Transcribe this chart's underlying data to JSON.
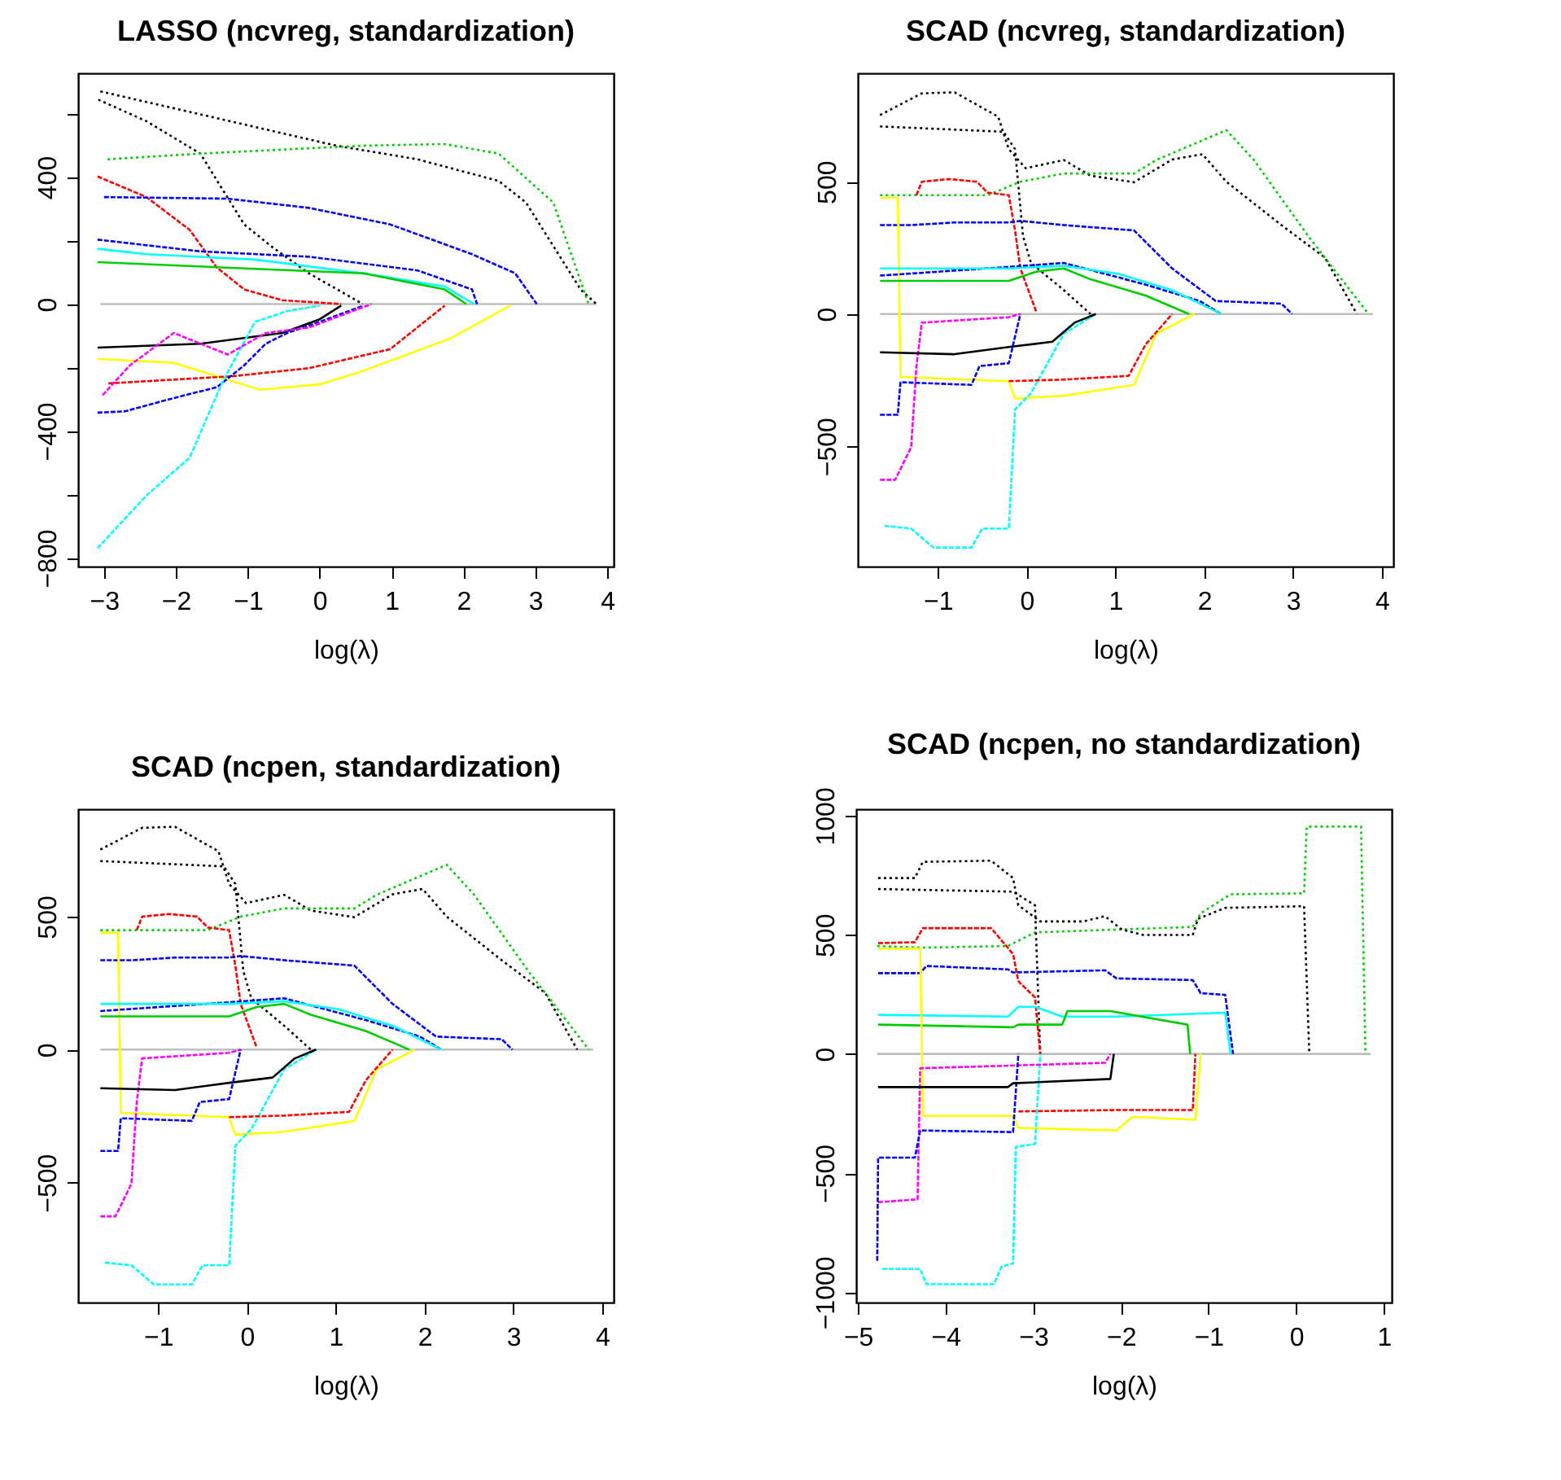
{
  "chart_data": [
    {
      "type": "line",
      "title": "LASSO (ncvreg, standardization)",
      "xlabel": "log(λ)",
      "xlim": [
        -3.36,
        4.09
      ],
      "ylim": [
        -827,
        727
      ],
      "xticks": [
        -3,
        -2,
        -1,
        0,
        1,
        2,
        3,
        4
      ],
      "yticks": [
        {
          "value": -800,
          "label": "−800"
        },
        {
          "value": -600,
          "label": null
        },
        {
          "value": -400,
          "label": "−400"
        },
        {
          "value": -200,
          "label": null
        },
        0,
        {
          "value": 200,
          "label": null
        },
        400,
        {
          "value": 600,
          "label": null
        }
      ],
      "series": [
        {
          "color": "#bebebe",
          "line_style": "solid",
          "x": [
            -3.05,
            3.85
          ],
          "values": [
            0,
            0
          ]
        },
        {
          "color": "#000000",
          "line_style": "dotted",
          "x": [
            -3.05,
            0.23,
            1.36,
            2.49,
            2.87,
            3.63,
            3.85
          ],
          "values": [
            670,
            499,
            456,
            388,
            320,
            46,
            0
          ]
        },
        {
          "color": "#000000",
          "line_style": "dotted",
          "x": [
            -3.08,
            -2.41,
            -1.66,
            -1.05,
            -0.68,
            -0.15,
            0.6
          ],
          "values": [
            644,
            576,
            474,
            251,
            183,
            97,
            0
          ]
        },
        {
          "color": "#00cd00",
          "line_style": "dotted",
          "x": [
            -2.95,
            -1.66,
            0.61,
            1.74,
            2.49,
            3.25,
            3.74
          ],
          "values": [
            456,
            474,
            499,
            504,
            474,
            320,
            0
          ]
        },
        {
          "color": "#ff0000",
          "line_style": "dashed",
          "x": [
            -3.09,
            -2.41,
            -1.81,
            -1.43,
            -1.05,
            -0.52,
            0.3
          ],
          "values": [
            402,
            337,
            234,
            115,
            46,
            12,
            0
          ]
        },
        {
          "color": "#0000ff",
          "line_style": "dashed",
          "x": [
            -3,
            -1.28,
            -0.15,
            0.98,
            2.12,
            2.72,
            3.02
          ],
          "values": [
            337,
            332,
            303,
            251,
            157,
            97,
            0
          ]
        },
        {
          "color": "#00ffff",
          "line_style": "solid",
          "x": [
            -3.09,
            -2.41,
            -0.9,
            0.61,
            1.74,
            2.15
          ],
          "values": [
            174,
            157,
            140,
            97,
            55,
            0
          ]
        },
        {
          "color": "#0000ff",
          "line_style": "dashed",
          "x": [
            -3.09,
            -1.66,
            -0.15,
            1.36,
            2.12,
            2.19
          ],
          "values": [
            203,
            166,
            149,
            106,
            46,
            0
          ]
        },
        {
          "color": "#00cd00",
          "line_style": "solid",
          "x": [
            -3.09,
            -0.9,
            0.61,
            1.74,
            2.04
          ],
          "values": [
            132,
            111,
            97,
            46,
            0
          ]
        },
        {
          "color": "#000000",
          "line_style": "solid",
          "x": [
            -3.09,
            -1.66,
            -0.52,
            0,
            0.3
          ],
          "values": [
            -137,
            -125,
            -91,
            -48,
            -5
          ]
        },
        {
          "color": "#ffff00",
          "line_style": "solid",
          "x": [
            -3.09,
            -2.03,
            -0.83,
            0,
            0.61,
            1.82,
            2.65
          ],
          "values": [
            -173,
            -185,
            -270,
            -253,
            -210,
            -108,
            -5
          ]
        },
        {
          "color": "#ff0000",
          "line_style": "dashed",
          "x": [
            -2.94,
            -1.2,
            -0.15,
            0.98,
            1.74
          ],
          "values": [
            -250,
            -227,
            -202,
            -142,
            -5
          ]
        },
        {
          "color": "#0000ff",
          "line_style": "dashed",
          "x": [
            -3.09,
            -2.71,
            -2.03,
            -1.43,
            -1.05,
            -0.75,
            -0.45,
            0,
            0.61
          ],
          "values": [
            -342,
            -338,
            -296,
            -262,
            -193,
            -125,
            -91,
            -56,
            -5
          ]
        },
        {
          "color": "#00ffff",
          "line_style": "dashed",
          "x": [
            -3.09,
            -2.41,
            -1.81,
            -1.35,
            -0.9,
            -0.45,
            0
          ],
          "values": [
            -769,
            -603,
            -484,
            -244,
            -56,
            -22,
            -5
          ]
        },
        {
          "color": "#ff00ff",
          "line_style": "dashed",
          "x": [
            -3.02,
            -2.64,
            -2.03,
            -1.28,
            -0.75,
            -0.15,
            0.72
          ],
          "values": [
            -287,
            -193,
            -91,
            -159,
            -91,
            -74,
            0
          ]
        }
      ]
    },
    {
      "type": "line",
      "title": "SCAD (ncvreg, standardization)",
      "xlabel": "log(λ)",
      "xlim": [
        -1.9,
        4.13
      ],
      "ylim": [
        -955,
        910
      ],
      "xticks": [
        -1,
        0,
        1,
        2,
        3,
        4
      ],
      "yticks": [
        -500,
        0,
        500
      ],
      "series": [
        {
          "color": "#bebebe",
          "line_style": "solid",
          "x": [
            -1.65,
            3.9
          ],
          "values": [
            0,
            0
          ]
        },
        {
          "color": "#000000",
          "line_style": "dotted",
          "x": [
            -1.65,
            -1.18,
            -0.81,
            -0.32,
            -0.2,
            -0.01,
            0.42,
            0.72,
            1.21,
            1.64,
            1.98,
            2.25,
            2.87,
            3.36,
            3.72
          ],
          "values": [
            752,
            834,
            838,
            746,
            623,
            551,
            582,
            523,
            498,
            584,
            604,
            500,
            336,
            213,
            0
          ]
        },
        {
          "color": "#000000",
          "line_style": "dotted",
          "x": [
            -1.65,
            -0.26,
            -0.13,
            -0.04,
            0.05,
            0.42,
            0.72
          ],
          "values": [
            709,
            689,
            623,
            295,
            193,
            90,
            0
          ]
        },
        {
          "color": "#00cd00",
          "line_style": "dotted",
          "x": [
            -1.65,
            -0.44,
            -0.07,
            0.42,
            1.21,
            1.46,
            2.25,
            2.56,
            3.17,
            3.85
          ],
          "values": [
            449,
            449,
            500,
            531,
            531,
            582,
            695,
            582,
            295,
            0
          ]
        },
        {
          "color": "#ff0000",
          "line_style": "dashed",
          "x": [
            -1.24,
            -1.18,
            -0.87,
            -0.56,
            -0.44,
            -0.2,
            -0.13,
            -0.07,
            0.11
          ],
          "values": [
            449,
            500,
            510,
            500,
            459,
            449,
            316,
            172,
            8
          ]
        },
        {
          "color": "#0000ff",
          "line_style": "dashed",
          "x": [
            -1.65,
            -1.3,
            -0.81,
            -0.2,
            -0.07,
            0.42,
            1.21,
            1.64,
            2.13,
            2.87,
            2.99
          ],
          "values": [
            336,
            336,
            346,
            346,
            352,
            336,
            316,
            172,
            49,
            39,
            0
          ]
        },
        {
          "color": "#ffff00",
          "line_style": "solid",
          "x": [
            -1.65,
            -1.45,
            -1.42,
            -0.2,
            -0.13,
            0.42,
            1.21,
            1.46,
            1.89
          ],
          "values": [
            439,
            439,
            -238,
            -254,
            -320,
            -309,
            -268,
            -74,
            0
          ]
        },
        {
          "color": "#00ffff",
          "line_style": "dashed",
          "x": [
            -1.6,
            -1.3,
            -1.05,
            -0.62,
            -0.5,
            -0.2,
            -0.13,
            0.05,
            0.42,
            0.78
          ],
          "values": [
            -801,
            -811,
            -883,
            -883,
            -811,
            -811,
            -361,
            -299,
            -74,
            0
          ]
        },
        {
          "color": "#ff00ff",
          "line_style": "dashed",
          "x": [
            -1.65,
            -1.48,
            -1.3,
            -1.24,
            -1.18,
            -0.2,
            -0.07
          ],
          "values": [
            -627,
            -627,
            -504,
            -197,
            -33,
            -12,
            0
          ]
        },
        {
          "color": "#ff0000",
          "line_style": "dashed",
          "x": [
            -0.2,
            0.42,
            1.15,
            1.34,
            1.64
          ],
          "values": [
            -254,
            -248,
            -234,
            -115,
            0
          ]
        },
        {
          "color": "#0000ff",
          "line_style": "dashed",
          "x": [
            -1.65,
            -0.2,
            0.42,
            1.34,
            1.95,
            2.19
          ],
          "values": [
            145,
            178,
            193,
            111,
            49,
            0
          ]
        },
        {
          "color": "#00ffff",
          "line_style": "solid",
          "x": [
            -1.65,
            -0.2,
            0.42,
            1.03,
            1.64,
            2.19
          ],
          "values": [
            172,
            172,
            182,
            152,
            90,
            0
          ]
        },
        {
          "color": "#00cd00",
          "line_style": "solid",
          "x": [
            -1.65,
            -0.2,
            0.11,
            0.42,
            0.72,
            1.34,
            1.83
          ],
          "values": [
            125,
            125,
            160,
            172,
            131,
            70,
            0
          ]
        },
        {
          "color": "#000000",
          "line_style": "solid",
          "x": [
            -1.65,
            -0.81,
            -0.2,
            0.29,
            0.54,
            0.78
          ],
          "values": [
            -145,
            -152,
            -125,
            -105,
            -33,
            0
          ]
        },
        {
          "color": "#0000ff",
          "line_style": "dashed",
          "x": [
            -1.65,
            -1.45,
            -1.42,
            -0.62,
            -0.53,
            -0.2,
            -0.07
          ],
          "values": [
            -381,
            -381,
            -258,
            -268,
            -197,
            -186,
            0
          ]
        }
      ]
    },
    {
      "type": "line",
      "title": "SCAD (ncpen, standardization)",
      "xlabel": "log(λ)",
      "xlim": [
        -1.9,
        4.13
      ],
      "ylim": [
        -951,
        904
      ],
      "xticks": [
        -1,
        0,
        1,
        2,
        3,
        4
      ],
      "yticks": [
        -500,
        0,
        500
      ],
      "series": [
        {
          "color": "#bebebe",
          "line_style": "solid",
          "x": [
            -1.65,
            3.9
          ],
          "values": [
            0,
            0
          ]
        },
        {
          "color": "#000000",
          "line_style": "dotted",
          "x": [
            -1.65,
            -1.18,
            -0.81,
            -0.32,
            -0.2,
            -0.01,
            0.42,
            0.72,
            1.21,
            1.64,
            1.98,
            2.25,
            2.87,
            3.36,
            3.72
          ],
          "values": [
            752,
            834,
            838,
            746,
            623,
            551,
            582,
            523,
            498,
            584,
            604,
            500,
            336,
            213,
            0
          ]
        },
        {
          "color": "#000000",
          "line_style": "dotted",
          "x": [
            -1.65,
            -0.26,
            -0.13,
            -0.04,
            0.05,
            0.42,
            0.72
          ],
          "values": [
            709,
            689,
            623,
            295,
            193,
            90,
            0
          ]
        },
        {
          "color": "#00cd00",
          "line_style": "dotted",
          "x": [
            -1.65,
            -0.44,
            -0.07,
            0.42,
            1.21,
            1.46,
            2.25,
            2.56,
            3.17,
            3.85
          ],
          "values": [
            449,
            449,
            500,
            531,
            531,
            582,
            695,
            582,
            295,
            0
          ]
        },
        {
          "color": "#ff0000",
          "line_style": "dashed",
          "x": [
            -1.24,
            -1.18,
            -0.87,
            -0.56,
            -0.44,
            -0.2,
            -0.13,
            -0.07,
            0.11
          ],
          "values": [
            449,
            500,
            510,
            500,
            459,
            449,
            316,
            172,
            8
          ]
        },
        {
          "color": "#0000ff",
          "line_style": "dashed",
          "x": [
            -1.65,
            -1.3,
            -0.81,
            -0.2,
            -0.07,
            0.42,
            1.21,
            1.64,
            2.13,
            2.87,
            2.99
          ],
          "values": [
            336,
            336,
            346,
            346,
            352,
            336,
            316,
            172,
            49,
            39,
            0
          ]
        },
        {
          "color": "#ffff00",
          "line_style": "solid",
          "x": [
            -1.65,
            -1.45,
            -1.42,
            -0.2,
            -0.13,
            0.42,
            1.21,
            1.46,
            1.89
          ],
          "values": [
            439,
            439,
            -238,
            -254,
            -320,
            -309,
            -268,
            -74,
            0
          ]
        },
        {
          "color": "#00ffff",
          "line_style": "dashed",
          "x": [
            -1.6,
            -1.3,
            -1.05,
            -0.62,
            -0.5,
            -0.2,
            -0.13,
            0.05,
            0.42,
            0.78
          ],
          "values": [
            -801,
            -811,
            -883,
            -883,
            -811,
            -811,
            -361,
            -299,
            -74,
            0
          ]
        },
        {
          "color": "#ff00ff",
          "line_style": "dashed",
          "x": [
            -1.65,
            -1.48,
            -1.3,
            -1.24,
            -1.18,
            -0.2,
            -0.07
          ],
          "values": [
            -627,
            -627,
            -504,
            -197,
            -33,
            -12,
            0
          ]
        },
        {
          "color": "#ff0000",
          "line_style": "dashed",
          "x": [
            -0.2,
            0.42,
            1.15,
            1.34,
            1.64
          ],
          "values": [
            -254,
            -248,
            -234,
            -115,
            0
          ]
        },
        {
          "color": "#0000ff",
          "line_style": "dashed",
          "x": [
            -1.65,
            -0.2,
            0.42,
            1.34,
            1.95,
            2.19
          ],
          "values": [
            145,
            178,
            193,
            111,
            49,
            0
          ]
        },
        {
          "color": "#00ffff",
          "line_style": "solid",
          "x": [
            -1.65,
            -0.2,
            0.42,
            1.03,
            1.64,
            2.19
          ],
          "values": [
            172,
            172,
            182,
            152,
            90,
            0
          ]
        },
        {
          "color": "#00cd00",
          "line_style": "solid",
          "x": [
            -1.65,
            -0.2,
            0.11,
            0.42,
            0.72,
            1.34,
            1.83
          ],
          "values": [
            125,
            125,
            160,
            172,
            131,
            70,
            0
          ]
        },
        {
          "color": "#000000",
          "line_style": "solid",
          "x": [
            -1.65,
            -0.81,
            -0.2,
            0.29,
            0.54,
            0.78
          ],
          "values": [
            -145,
            -152,
            -125,
            -105,
            -33,
            0
          ]
        },
        {
          "color": "#0000ff",
          "line_style": "dashed",
          "x": [
            -1.65,
            -1.45,
            -1.42,
            -0.62,
            -0.53,
            -0.2,
            -0.07
          ],
          "values": [
            -381,
            -381,
            -258,
            -268,
            -197,
            -186,
            0
          ]
        }
      ]
    },
    {
      "type": "line",
      "title": "SCAD (ncpen, no standardization)",
      "xlabel": "log(λ)",
      "xlim": [
        -5.02,
        1.09
      ],
      "ylim": [
        -1043,
        1027
      ],
      "xticks": [
        -5,
        -4,
        -3,
        -2,
        -1,
        0,
        1
      ],
      "yticks": [
        -1000,
        -500,
        0,
        500,
        1000
      ],
      "series": [
        {
          "color": "#bebebe",
          "line_style": "solid",
          "x": [
            -4.78,
            0.85
          ],
          "values": [
            0,
            0
          ]
        },
        {
          "color": "#00cd00",
          "line_style": "dotted",
          "x": [
            -4.78,
            -4.29,
            -3.29,
            -2.98,
            -2.05,
            -1.18,
            -1.09,
            -0.75,
            0.09,
            0.12,
            0.74,
            0.79
          ],
          "values": [
            453,
            446,
            453,
            510,
            522,
            533,
            590,
            670,
            674,
            954,
            954,
            0
          ]
        },
        {
          "color": "#000000",
          "line_style": "dotted",
          "x": [
            -4.77,
            -4.35,
            -4.26,
            -3.48,
            -3.23,
            -3.17,
            -2.92,
            -2.43,
            -2.18,
            -1.99,
            -1.74,
            -1.18,
            -1.12,
            -0.81,
            0.09,
            0.15
          ],
          "values": [
            738,
            738,
            806,
            811,
            738,
            624,
            556,
            556,
            578,
            522,
            499,
            499,
            567,
            613,
            620,
            0
          ]
        },
        {
          "color": "#000000",
          "line_style": "dotted",
          "x": [
            -4.77,
            -3.23,
            -2.98,
            -2.92
          ],
          "values": [
            692,
            681,
            624,
            0
          ]
        },
        {
          "color": "#ff0000",
          "line_style": "dashed",
          "x": [
            -4.77,
            -4.35,
            -4.26,
            -3.48,
            -3.23,
            -3.17,
            -2.98,
            -2.92
          ],
          "values": [
            465,
            469,
            528,
            528,
            419,
            305,
            237,
            0
          ]
        },
        {
          "color": "#0000ff",
          "line_style": "dashed",
          "x": [
            -4.77,
            -4.29,
            -4.22,
            -3.29,
            -3.23,
            -2.18,
            -2.05,
            -1.18,
            -1.09,
            -0.81,
            -0.72
          ],
          "values": [
            339,
            339,
            369,
            355,
            342,
            351,
            317,
            310,
            255,
            248,
            0
          ]
        },
        {
          "color": "#00ffff",
          "line_style": "solid",
          "x": [
            -4.77,
            -3.29,
            -3.17,
            -2.98,
            -2.67,
            -2.05,
            -0.81,
            -0.75
          ],
          "values": [
            164,
            157,
            198,
            198,
            157,
            157,
            173,
            0
          ]
        },
        {
          "color": "#00cd00",
          "line_style": "solid",
          "x": [
            -4.77,
            -3.23,
            -3.17,
            -2.67,
            -2.61,
            -2.12,
            -1.24,
            -1.21
          ],
          "values": [
            123,
            112,
            123,
            123,
            180,
            180,
            123,
            0
          ]
        },
        {
          "color": "#ffff00",
          "line_style": "solid",
          "x": [
            -4.77,
            -4.29,
            -4.26,
            -3.23,
            -3.17,
            -2.05,
            -1.87,
            -1.15,
            -1.09
          ],
          "values": [
            442,
            442,
            -260,
            -260,
            -310,
            -321,
            -264,
            -276,
            0
          ]
        },
        {
          "color": "#ff0000",
          "line_style": "dashed",
          "x": [
            -3.17,
            -1.99,
            -1.18,
            -1.15
          ],
          "values": [
            -241,
            -235,
            -235,
            0
          ]
        },
        {
          "color": "#00ffff",
          "line_style": "dashed",
          "x": [
            -4.72,
            -4.29,
            -4.22,
            -3.45,
            -3.36,
            -3.23,
            -3.2,
            -2.98,
            -2.92
          ],
          "values": [
            -902,
            -902,
            -966,
            -966,
            -891,
            -879,
            -390,
            -378,
            0
          ]
        },
        {
          "color": "#ff00ff",
          "line_style": "dashed",
          "x": [
            -4.77,
            -4.32,
            -4.29,
            -2.18,
            -2.12
          ],
          "values": [
            -622,
            -610,
            -60,
            -37,
            0
          ]
        },
        {
          "color": "#0000ff",
          "line_style": "dashed",
          "x": [
            -4.78,
            -4.77,
            -4.35,
            -4.29,
            -3.23,
            -3.17
          ],
          "values": [
            -868,
            -435,
            -435,
            -321,
            -328,
            0
          ]
        },
        {
          "color": "#000000",
          "line_style": "solid",
          "x": [
            -4.77,
            -3.29,
            -3.23,
            -2.12,
            -2.08
          ],
          "values": [
            -139,
            -139,
            -123,
            -105,
            0
          ]
        }
      ]
    }
  ]
}
